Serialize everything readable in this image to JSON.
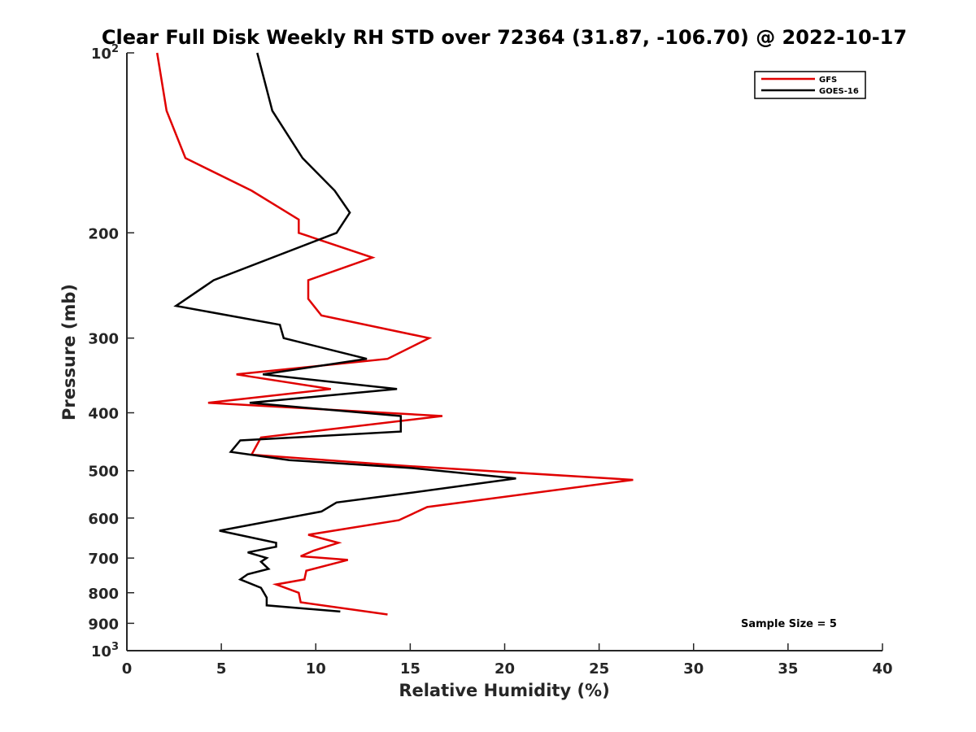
{
  "chart_data": {
    "type": "line",
    "title": "Clear Full Disk Weekly RH STD over 72364 (31.87, -106.70) @ 2022-10-17",
    "xlabel": "Relative Humidity (%)",
    "ylabel": "Pressure (mb)",
    "xlim": [
      0,
      40
    ],
    "ylim": [
      100,
      1000
    ],
    "yscale": "log",
    "y_reversed": true,
    "grid": false,
    "legend_position": "top-right",
    "x_ticks": [
      0,
      5,
      10,
      15,
      20,
      25,
      30,
      35,
      40
    ],
    "x_tick_labels": [
      "0",
      "5",
      "10",
      "15",
      "20",
      "25",
      "30",
      "35",
      "40"
    ],
    "y_ticks": [
      200,
      300,
      400,
      500,
      600,
      700,
      800,
      900
    ],
    "y_tick_labels": [
      "200",
      "300",
      "400",
      "500",
      "600",
      "700",
      "800",
      "900"
    ],
    "y_edge_labels": [
      {
        "value": 100,
        "base": "10",
        "exp": "2"
      },
      {
        "value": 1000,
        "base": "10",
        "exp": "3"
      }
    ],
    "annotation": "Sample Size = 5",
    "series": [
      {
        "name": "GFS",
        "color": "#e00000",
        "points": [
          [
            1.6,
            100
          ],
          [
            2.1,
            125
          ],
          [
            3.1,
            150
          ],
          [
            6.6,
            170
          ],
          [
            9.1,
            190
          ],
          [
            9.1,
            200
          ],
          [
            13,
            220
          ],
          [
            9.6,
            240
          ],
          [
            9.6,
            258
          ],
          [
            10.3,
            275
          ],
          [
            16,
            300
          ],
          [
            13.8,
            325
          ],
          [
            5.8,
            345
          ],
          [
            10.8,
            365
          ],
          [
            4.3,
            385
          ],
          [
            16.7,
            405
          ],
          [
            7.1,
            440
          ],
          [
            6.6,
            470
          ],
          [
            14.4,
            490
          ],
          [
            26.8,
            518
          ],
          [
            15.9,
            575
          ],
          [
            14.4,
            605
          ],
          [
            9.6,
            640
          ],
          [
            11.2,
            660
          ],
          [
            9.9,
            680
          ],
          [
            9.2,
            695
          ],
          [
            11.7,
            705
          ],
          [
            9.5,
            735
          ],
          [
            9.4,
            760
          ],
          [
            7.9,
            775
          ],
          [
            9.1,
            800
          ],
          [
            9.2,
            830
          ],
          [
            13.8,
            870
          ]
        ]
      },
      {
        "name": "GOES-16",
        "color": "#000000",
        "points": [
          [
            6.9,
            100
          ],
          [
            7.7,
            125
          ],
          [
            9.3,
            150
          ],
          [
            11,
            170
          ],
          [
            11.8,
            185
          ],
          [
            11.1,
            200
          ],
          [
            4.6,
            240
          ],
          [
            2.6,
            265
          ],
          [
            8.1,
            285
          ],
          [
            8.3,
            300
          ],
          [
            12.7,
            325
          ],
          [
            7.2,
            345
          ],
          [
            14.3,
            365
          ],
          [
            6.5,
            385
          ],
          [
            14.5,
            405
          ],
          [
            14.5,
            430
          ],
          [
            6,
            445
          ],
          [
            5.5,
            465
          ],
          [
            8.6,
            480
          ],
          [
            15.1,
            495
          ],
          [
            20.6,
            515
          ],
          [
            14.9,
            545
          ],
          [
            11.1,
            565
          ],
          [
            10.3,
            585
          ],
          [
            4.9,
            630
          ],
          [
            7.9,
            660
          ],
          [
            7.9,
            670
          ],
          [
            6.4,
            685
          ],
          [
            7.4,
            700
          ],
          [
            7.1,
            710
          ],
          [
            7.5,
            730
          ],
          [
            6.4,
            745
          ],
          [
            6,
            760
          ],
          [
            7.1,
            785
          ],
          [
            7.4,
            815
          ],
          [
            7.4,
            840
          ],
          [
            11.3,
            860
          ]
        ]
      }
    ]
  }
}
